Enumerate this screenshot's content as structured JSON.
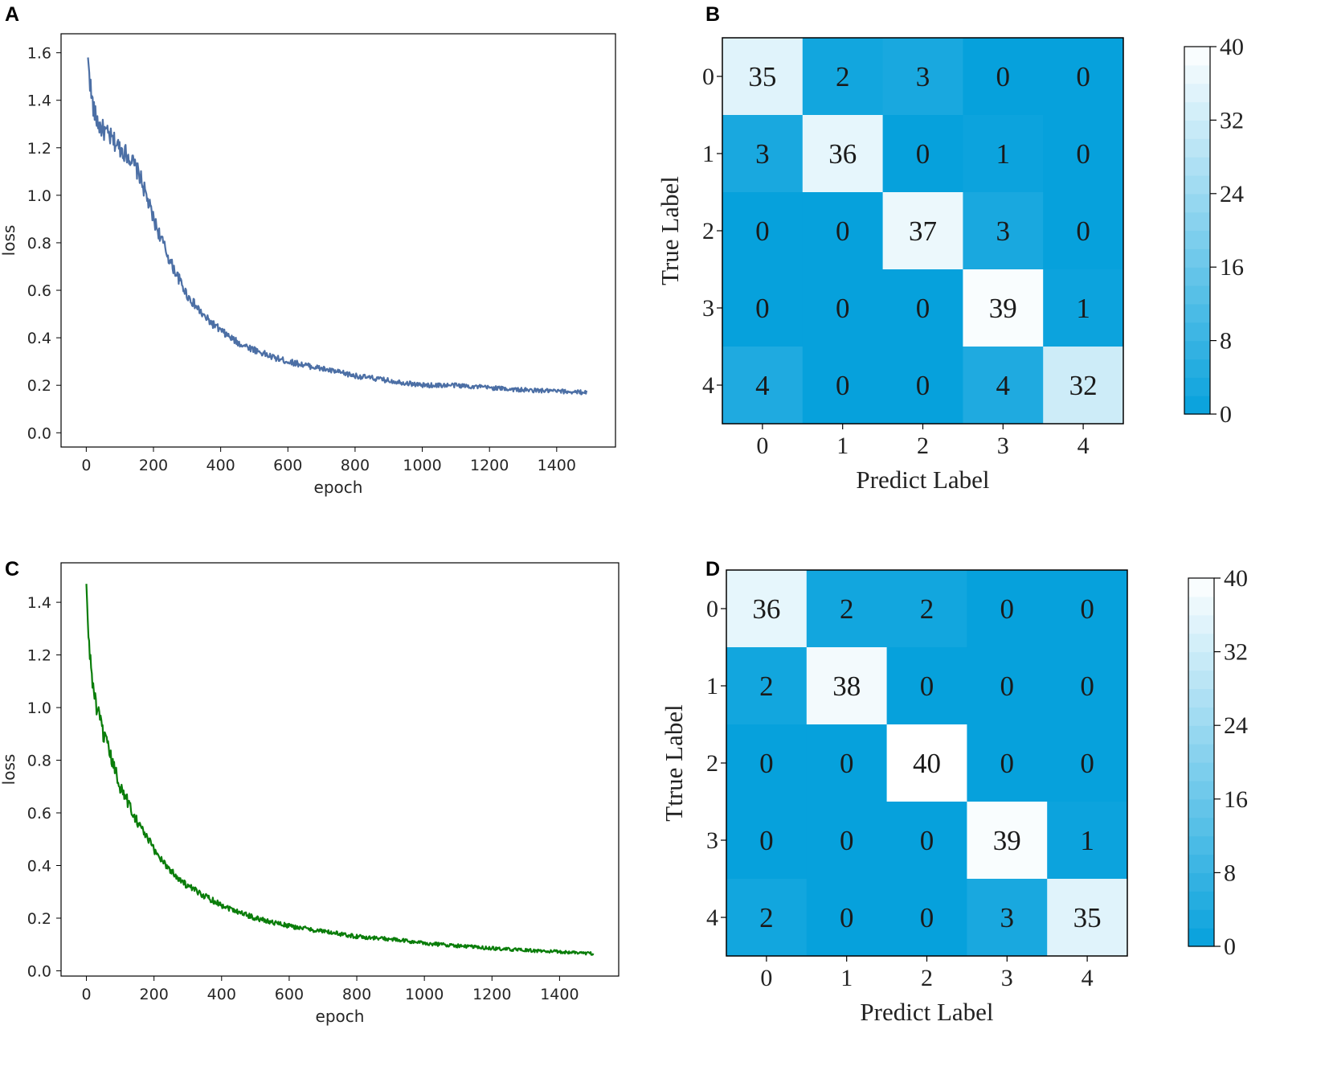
{
  "panels": {
    "A": "A",
    "B": "B",
    "C": "C",
    "D": "D"
  },
  "chart_data": [
    {
      "panel": "A",
      "type": "line",
      "title": "",
      "xlabel": "epoch",
      "ylabel": "loss",
      "xlim": [
        -75,
        1575
      ],
      "ylim": [
        -0.06,
        1.68
      ],
      "xticks": [
        0,
        200,
        400,
        600,
        800,
        1000,
        1200,
        1400
      ],
      "yticks": [
        0.0,
        0.2,
        0.4,
        0.6,
        0.8,
        1.0,
        1.2,
        1.4,
        1.6
      ],
      "ytick_labels": [
        "0.0",
        "0.2",
        "0.4",
        "0.6",
        "0.8",
        "1.0",
        "1.2",
        "1.4",
        "1.6"
      ],
      "color": "#4c6fa5",
      "grid": false,
      "series": [
        {
          "name": "loss",
          "x": [
            5,
            15,
            25,
            40,
            60,
            80,
            100,
            130,
            160,
            200,
            250,
            300,
            350,
            400,
            450,
            500,
            550,
            600,
            700,
            800,
            900,
            1000,
            1100,
            1200,
            1300,
            1400,
            1490
          ],
          "y": [
            1.58,
            1.42,
            1.34,
            1.29,
            1.26,
            1.23,
            1.2,
            1.16,
            1.08,
            0.9,
            0.72,
            0.58,
            0.49,
            0.43,
            0.38,
            0.35,
            0.32,
            0.3,
            0.27,
            0.24,
            0.22,
            0.2,
            0.2,
            0.19,
            0.18,
            0.175,
            0.17
          ]
        }
      ]
    },
    {
      "panel": "B",
      "type": "heatmap",
      "xlabel": "Predict Label",
      "ylabel": "True Label",
      "x_categories": [
        "0",
        "1",
        "2",
        "3",
        "4"
      ],
      "y_categories": [
        "0",
        "1",
        "2",
        "3",
        "4"
      ],
      "values": [
        [
          35,
          2,
          3,
          0,
          0
        ],
        [
          3,
          36,
          0,
          1,
          0
        ],
        [
          0,
          0,
          37,
          3,
          0
        ],
        [
          0,
          0,
          0,
          39,
          1
        ],
        [
          4,
          0,
          0,
          4,
          32
        ]
      ],
      "colorbar": {
        "min": 0,
        "max": 40,
        "ticks": [
          0,
          8,
          16,
          24,
          32,
          40
        ],
        "tick_labels": [
          "0",
          "8",
          "16",
          "24",
          "32",
          "40"
        ]
      },
      "colors": {
        "low": "#06a1dc",
        "high": "#ffffff"
      }
    },
    {
      "panel": "C",
      "type": "line",
      "title": "",
      "xlabel": "epoch",
      "ylabel": "loss",
      "xlim": [
        -75,
        1575
      ],
      "ylim": [
        -0.02,
        1.55
      ],
      "xticks": [
        0,
        200,
        400,
        600,
        800,
        1000,
        1200,
        1400
      ],
      "yticks": [
        0.0,
        0.2,
        0.4,
        0.6,
        0.8,
        1.0,
        1.2,
        1.4
      ],
      "ytick_labels": [
        "0.0",
        "0.2",
        "0.4",
        "0.6",
        "0.8",
        "1.0",
        "1.2",
        "1.4"
      ],
      "color": "#0a7d0a",
      "grid": false,
      "series": [
        {
          "name": "loss",
          "x": [
            0,
            5,
            10,
            20,
            30,
            50,
            75,
            100,
            150,
            200,
            250,
            300,
            400,
            500,
            600,
            700,
            800,
            900,
            1000,
            1100,
            1200,
            1300,
            1400,
            1500
          ],
          "y": [
            1.47,
            1.3,
            1.2,
            1.08,
            1.0,
            0.9,
            0.8,
            0.7,
            0.57,
            0.46,
            0.38,
            0.32,
            0.25,
            0.2,
            0.17,
            0.15,
            0.13,
            0.12,
            0.105,
            0.095,
            0.085,
            0.078,
            0.072,
            0.066
          ]
        }
      ]
    },
    {
      "panel": "D",
      "type": "heatmap",
      "xlabel": "Predict Label",
      "ylabel": "Ttrue Label",
      "x_categories": [
        "0",
        "1",
        "2",
        "3",
        "4"
      ],
      "y_categories": [
        "0",
        "1",
        "2",
        "3",
        "4"
      ],
      "values": [
        [
          36,
          2,
          2,
          0,
          0
        ],
        [
          2,
          38,
          0,
          0,
          0
        ],
        [
          0,
          0,
          40,
          0,
          0
        ],
        [
          0,
          0,
          0,
          39,
          1
        ],
        [
          2,
          0,
          0,
          3,
          35
        ]
      ],
      "colorbar": {
        "min": 0,
        "max": 40,
        "ticks": [
          0,
          8,
          16,
          24,
          32,
          40
        ],
        "tick_labels": [
          "0",
          "8",
          "16",
          "24",
          "32",
          "40"
        ]
      },
      "colors": {
        "low": "#06a1dc",
        "high": "#ffffff"
      }
    }
  ]
}
